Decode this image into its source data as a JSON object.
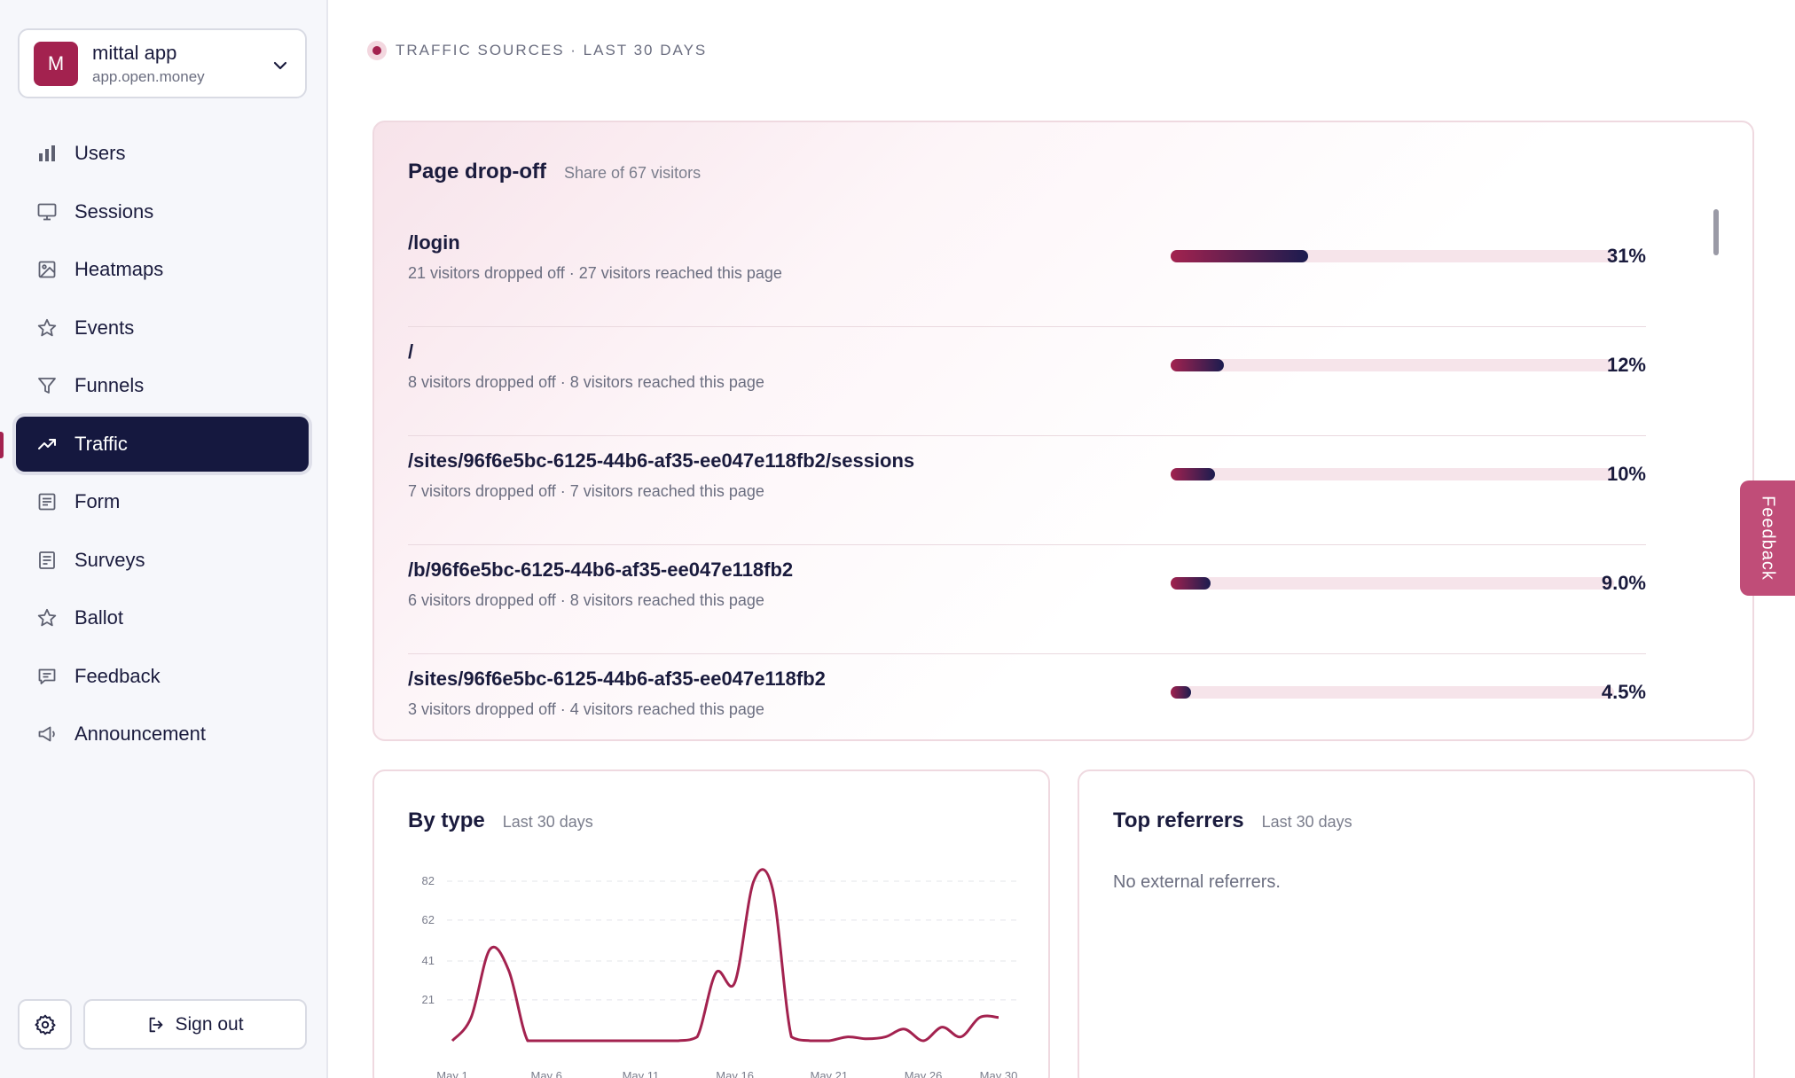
{
  "app": {
    "initial": "M",
    "name": "mittal app",
    "url": "app.open.money"
  },
  "nav": {
    "items": [
      {
        "label": "Users",
        "icon": "bar-chart-icon"
      },
      {
        "label": "Sessions",
        "icon": "monitor-icon"
      },
      {
        "label": "Heatmaps",
        "icon": "image-icon"
      },
      {
        "label": "Events",
        "icon": "star-icon"
      },
      {
        "label": "Funnels",
        "icon": "filter-icon"
      },
      {
        "label": "Traffic",
        "icon": "trending-up-icon",
        "active": true
      },
      {
        "label": "Form",
        "icon": "form-icon"
      },
      {
        "label": "Surveys",
        "icon": "survey-icon"
      },
      {
        "label": "Ballot",
        "icon": "star-icon"
      },
      {
        "label": "Feedback",
        "icon": "message-icon"
      },
      {
        "label": "Announcement",
        "icon": "megaphone-icon"
      }
    ]
  },
  "footer": {
    "signout_label": "Sign out"
  },
  "section": {
    "label": "TRAFFIC SOURCES · LAST 30 DAYS"
  },
  "dropoff": {
    "title": "Page drop-off",
    "subtitle": "Share of 67 visitors",
    "rows": [
      {
        "path": "/login",
        "meta": "21 visitors dropped off · 27 visitors reached this page",
        "pct_label": "31%",
        "share": 0.31
      },
      {
        "path": "/",
        "meta": "8 visitors dropped off · 8 visitors reached this page",
        "pct_label": "12%",
        "share": 0.12
      },
      {
        "path": "/sites/96f6e5bc-6125-44b6-af35-ee047e118fb2/sessions",
        "meta": "7 visitors dropped off · 7 visitors reached this page",
        "pct_label": "10%",
        "share": 0.1
      },
      {
        "path": "/b/96f6e5bc-6125-44b6-af35-ee047e118fb2",
        "meta": "6 visitors dropped off · 8 visitors reached this page",
        "pct_label": "9.0%",
        "share": 0.09
      },
      {
        "path": "/sites/96f6e5bc-6125-44b6-af35-ee047e118fb2",
        "meta": "3 visitors dropped off · 4 visitors reached this page",
        "pct_label": "4.5%",
        "share": 0.045
      }
    ]
  },
  "feedback_tab": {
    "label": "Feedback"
  },
  "by_type": {
    "title": "By type",
    "subtitle": "Last 30 days"
  },
  "referrers": {
    "title": "Top referrers",
    "subtitle": "Last 30 days",
    "empty": "No external referrers."
  },
  "colors": {
    "accent": "#a3224f",
    "nav_active": "#15183f",
    "line": "#a3224f"
  },
  "chart_data": {
    "type": "line",
    "x": [
      "May 1",
      "May 2",
      "May 3",
      "May 4",
      "May 5",
      "May 6",
      "May 7",
      "May 8",
      "May 9",
      "May 10",
      "May 11",
      "May 12",
      "May 13",
      "May 14",
      "May 15",
      "May 16",
      "May 17",
      "May 18",
      "May 19",
      "May 20",
      "May 21",
      "May 22",
      "May 23",
      "May 24",
      "May 25",
      "May 26",
      "May 27",
      "May 28",
      "May 29",
      "May 30"
    ],
    "series": [
      {
        "values": [
          0,
          12,
          47,
          36,
          0,
          0,
          0,
          0,
          0,
          0,
          0,
          0,
          0,
          2,
          35,
          30,
          82,
          78,
          2,
          0,
          0,
          2,
          1,
          2,
          6,
          0,
          7,
          2,
          12,
          12
        ]
      }
    ],
    "ylim": [
      0,
      82
    ],
    "yticks": [
      21,
      41,
      62,
      82
    ],
    "xticks": [
      "May 1",
      "May 6",
      "May 11",
      "May 16",
      "May 21",
      "May 26",
      "May 30"
    ],
    "grid": true
  }
}
